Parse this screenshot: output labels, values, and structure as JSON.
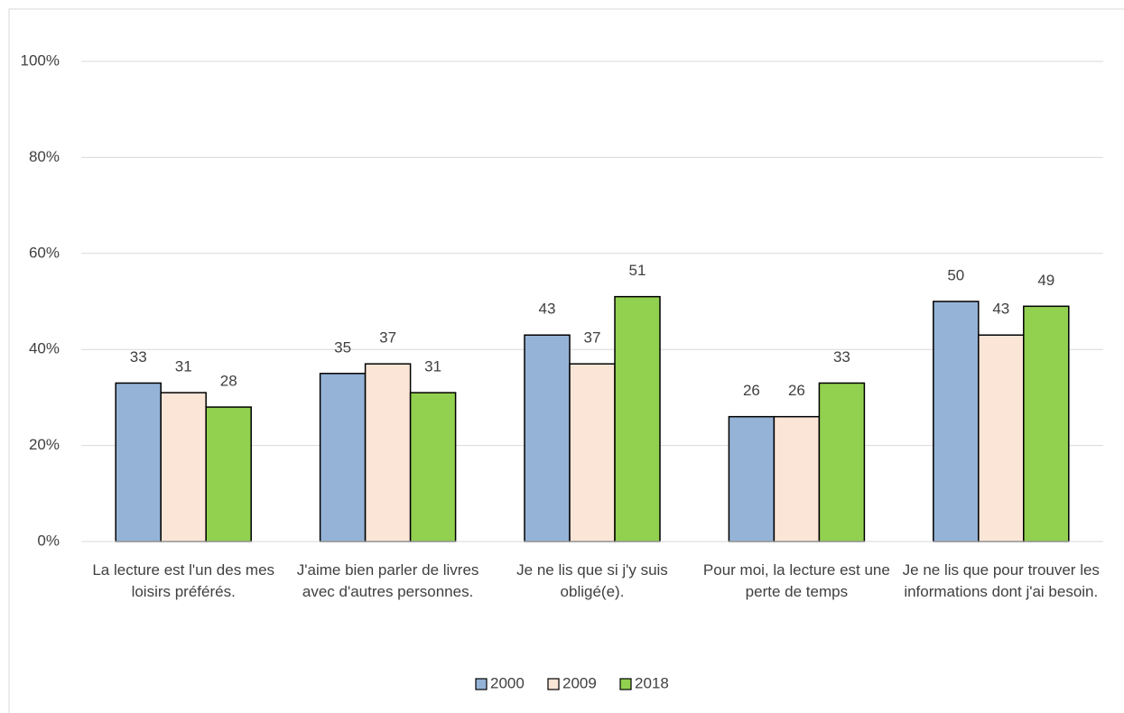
{
  "chart_data": {
    "type": "bar",
    "categories": [
      "La lecture est l'un des mes loisirs préférés.",
      "J'aime bien parler de livres avec d'autres personnes.",
      "Je ne lis que si j'y suis obligé(e).",
      "Pour moi, la lecture est une perte de temps",
      "Je ne lis que pour trouver les informations dont j'ai besoin."
    ],
    "series": [
      {
        "name": "2000",
        "color": "#95b3d7",
        "values": [
          33,
          35,
          43,
          26,
          50
        ]
      },
      {
        "name": "2009",
        "color": "#fbe5d6",
        "values": [
          31,
          37,
          37,
          26,
          43
        ]
      },
      {
        "name": "2018",
        "color": "#92d050",
        "values": [
          28,
          31,
          51,
          33,
          49
        ]
      }
    ],
    "ylim": [
      0,
      100
    ],
    "yticks": [
      {
        "value": 0,
        "label": "0%"
      },
      {
        "value": 20,
        "label": "20%"
      },
      {
        "value": 40,
        "label": "40%"
      },
      {
        "value": 60,
        "label": "60%"
      },
      {
        "value": 80,
        "label": "80%"
      },
      {
        "value": 100,
        "label": "100%"
      }
    ],
    "grid": true,
    "legend": "bottom"
  }
}
